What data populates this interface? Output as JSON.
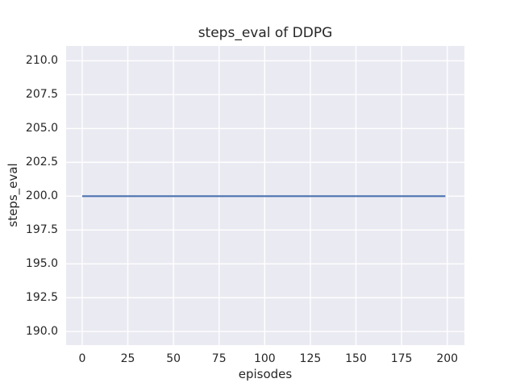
{
  "chart_data": {
    "type": "line",
    "title": "steps_eval of DDPG",
    "xlabel": "episodes",
    "ylabel": "steps_eval",
    "xlim": [
      -8.8,
      209.4
    ],
    "ylim": [
      189.0,
      211.1
    ],
    "grid": true,
    "legend": false,
    "plot_background": "#eaeaf2",
    "grid_color": "#ffffff",
    "text_color": "#262626",
    "figure_background": "#ffffff",
    "x_ticks": [
      {
        "value": 0,
        "label": "0"
      },
      {
        "value": 25,
        "label": "25"
      },
      {
        "value": 50,
        "label": "50"
      },
      {
        "value": 75,
        "label": "75"
      },
      {
        "value": 100,
        "label": "100"
      },
      {
        "value": 125,
        "label": "125"
      },
      {
        "value": 150,
        "label": "150"
      },
      {
        "value": 175,
        "label": "175"
      },
      {
        "value": 200,
        "label": "200"
      }
    ],
    "y_ticks": [
      {
        "value": 190.0,
        "label": "190.0"
      },
      {
        "value": 192.5,
        "label": "192.5"
      },
      {
        "value": 195.0,
        "label": "195.0"
      },
      {
        "value": 197.5,
        "label": "197.5"
      },
      {
        "value": 200.0,
        "label": "200.0"
      },
      {
        "value": 202.5,
        "label": "202.5"
      },
      {
        "value": 205.0,
        "label": "205.0"
      },
      {
        "value": 207.5,
        "label": "207.5"
      },
      {
        "value": 210.0,
        "label": "210.0"
      }
    ],
    "series": [
      {
        "name": "steps_eval",
        "color": "#4c72b0",
        "x": [
          0,
          199
        ],
        "values": [
          200,
          200
        ]
      }
    ]
  }
}
